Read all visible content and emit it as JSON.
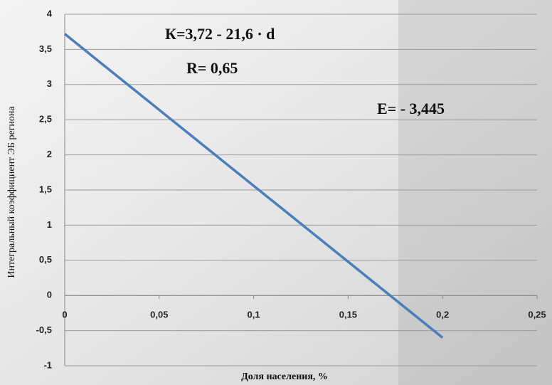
{
  "chart_data": {
    "type": "line",
    "x": [
      0,
      0.2
    ],
    "series": [
      {
        "name": "К",
        "color": "#4a7ebb",
        "values": [
          3.72,
          -0.6
        ]
      }
    ],
    "xlim": [
      0,
      0.25
    ],
    "xticks": [
      0,
      {
        "value": 0.05,
        "label": "0,05"
      },
      {
        "value": 0.1,
        "label": "0,1"
      },
      {
        "value": 0.15,
        "label": "0,15"
      },
      {
        "value": 0.2,
        "label": "0,2"
      },
      {
        "value": 0.25,
        "label": "0,25"
      }
    ],
    "ylim": [
      -1,
      4
    ],
    "yticks": [
      {
        "value": -1,
        "label": "-1"
      },
      {
        "value": -0.5,
        "label": "-0,5"
      },
      0,
      {
        "value": 0.5,
        "label": "0,5"
      },
      1,
      {
        "value": 1.5,
        "label": "1,5"
      },
      2,
      {
        "value": 2.5,
        "label": "2,5"
      },
      3,
      {
        "value": 3.5,
        "label": "3,5"
      },
      4
    ],
    "grid": true,
    "xlabel": "Доля населения, %",
    "ylabel": "Интегральный коэффициент ЭБ региона",
    "annotations": [
      "К=3,72 - 21,6 · d",
      "R= 0,65",
      "E= - 3,445"
    ]
  }
}
